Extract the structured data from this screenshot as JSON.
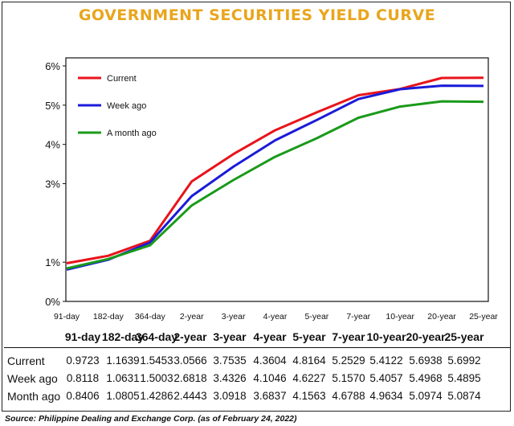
{
  "title": "GOVERNMENT SECURITIES YIELD CURVE",
  "source": "Source: Philippine Dealing and Exchange Corp. (as of February 24, 2022)",
  "colors": {
    "title": "#e9a51c",
    "current": "#e8141b",
    "week_ago": "#1b1bd9",
    "month_ago": "#1a9a1a"
  },
  "chart_data": {
    "type": "line",
    "title": "GOVERNMENT SECURITIES YIELD CURVE",
    "categories": [
      "91-day",
      "182-day",
      "364-day",
      "2-year",
      "3-year",
      "4-year",
      "5-year",
      "7-year",
      "10-year",
      "20-year",
      "25-year"
    ],
    "y_ticks": [
      "0%",
      "1%",
      "3%",
      "4%",
      "5%",
      "6%"
    ],
    "ylim": [
      0,
      6
    ],
    "legend_position": "top-left",
    "grid": false,
    "series": [
      {
        "name": "Current",
        "color": "#e8141b",
        "values": [
          0.9723,
          1.1639,
          1.5453,
          3.0566,
          3.7535,
          4.3604,
          4.8164,
          5.2529,
          5.4122,
          5.6938,
          5.6992
        ]
      },
      {
        "name": "Week ago",
        "color": "#1b1bd9",
        "values": [
          0.8118,
          1.0631,
          1.5003,
          2.6818,
          3.4326,
          4.1046,
          4.6227,
          5.157,
          5.4057,
          5.4968,
          5.4895
        ]
      },
      {
        "name": "A month ago",
        "color": "#1a9a1a",
        "values": [
          0.8406,
          1.0805,
          1.4286,
          2.4443,
          3.0918,
          3.6837,
          4.1563,
          4.6788,
          4.9634,
          5.0974,
          5.0874
        ]
      }
    ]
  },
  "table": {
    "headers": [
      "91-day",
      "182-day",
      "364-day",
      "2-year",
      "3-year",
      "4-year",
      "5-year",
      "7-year",
      "10-year",
      "20-year",
      "25-year"
    ],
    "rows": [
      {
        "label": "Current",
        "values": [
          "0.9723",
          "1.1639",
          "1.5453",
          "3.0566",
          "3.7535",
          "4.3604",
          "4.8164",
          "5.2529",
          "5.4122",
          "5.6938",
          "5.6992"
        ]
      },
      {
        "label": "Week ago",
        "values": [
          "0.8118",
          "1.0631",
          "1.5003",
          "2.6818",
          "3.4326",
          "4.1046",
          "4.6227",
          "5.1570",
          "5.4057",
          "5.4968",
          "5.4895"
        ]
      },
      {
        "label": "Month ago",
        "values": [
          "0.8406",
          "1.0805",
          "1.4286",
          "2.4443",
          "3.0918",
          "3.6837",
          "4.1563",
          "4.6788",
          "4.9634",
          "5.0974",
          "5.0874"
        ]
      }
    ]
  }
}
